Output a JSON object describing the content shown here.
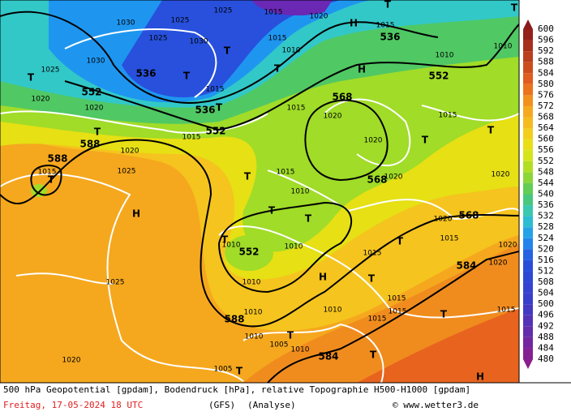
{
  "legend": {
    "values": [
      600,
      596,
      592,
      588,
      584,
      580,
      576,
      572,
      568,
      564,
      560,
      556,
      552,
      548,
      544,
      540,
      536,
      532,
      528,
      524,
      520,
      516,
      512,
      508,
      504,
      500,
      496,
      492,
      488,
      484,
      480
    ]
  },
  "map_labels": [
    "1025",
    "1015",
    "1020",
    "H",
    "1015",
    "536",
    "T",
    "T",
    "1030",
    "1025",
    "1025",
    "1030",
    "1010",
    "1010",
    "552",
    "1030",
    "1025",
    "T",
    "536",
    "T",
    "T",
    "T",
    "1015",
    "1010",
    "H",
    "568",
    "552",
    "1020",
    "1020",
    "536",
    "1015",
    "T",
    "1015",
    "1020",
    "1015",
    "T",
    "552",
    "T",
    "1015",
    "588",
    "1020",
    "1020",
    "T",
    "588",
    "1015",
    "T",
    "1025",
    "T",
    "1015",
    "568",
    "1020",
    "1020",
    "1010",
    "T",
    "T",
    "1020",
    "568",
    "H",
    "T",
    "1010",
    "552",
    "1010",
    "1015",
    "T",
    "1020",
    "584",
    "1015",
    "1020",
    "1025",
    "H",
    "T",
    "1010",
    "1015",
    "1015",
    "1010",
    "1015",
    "T",
    "588",
    "1010",
    "1015",
    "T",
    "1010",
    "1005",
    "1010",
    "584",
    "T",
    "1020",
    "1005",
    "T",
    "H"
  ],
  "footer": {
    "description": "500 hPa Geopotential [gpdam], Bodendruck [hPa], relative Topographie H500-H1000 [gpdam]",
    "date": "Freitag, 17-05-2024  18 UTC",
    "model": "(GFS)",
    "run": "(Analyse)",
    "credit": "© www.wetter3.de"
  }
}
